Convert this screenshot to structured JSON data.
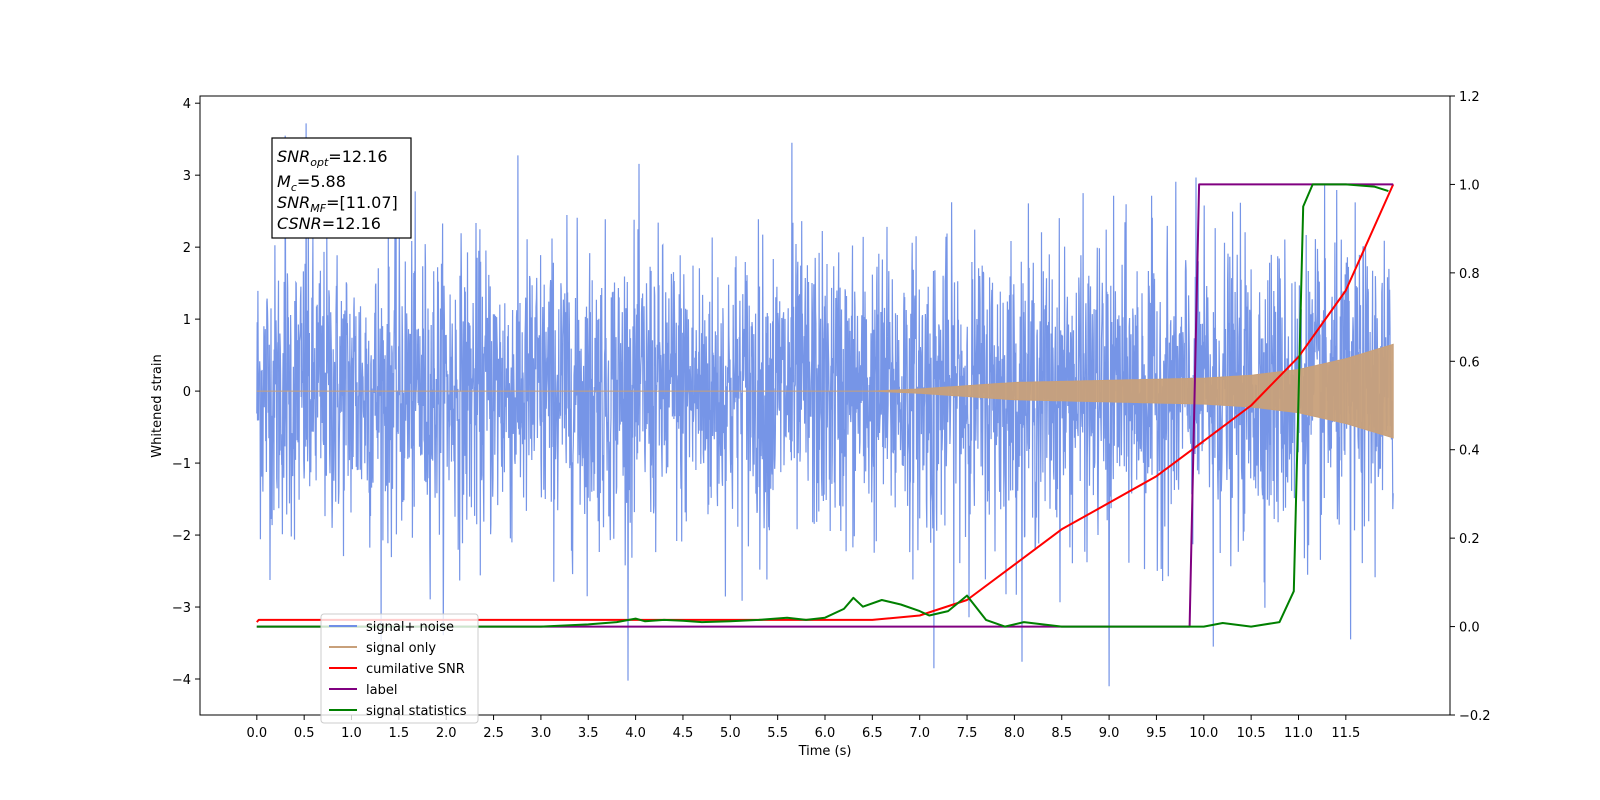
{
  "chart_data": {
    "type": "line",
    "xlabel": "Time (s)",
    "ylabel": "Whitened strain",
    "xlim": [
      -0.6,
      12.6
    ],
    "ylim": [
      -4.5,
      4.1
    ],
    "y2lim": [
      -0.2,
      1.2
    ],
    "x_ticks": [
      "0.0",
      "0.5",
      "1.0",
      "1.5",
      "2.0",
      "2.5",
      "3.0",
      "3.5",
      "4.0",
      "4.5",
      "5.0",
      "5.5",
      "6.0",
      "6.5",
      "7.0",
      "7.5",
      "8.0",
      "8.5",
      "9.0",
      "9.5",
      "10.0",
      "10.5",
      "11.0",
      "11.5"
    ],
    "y_ticks": [
      "4",
      "3",
      "2",
      "1",
      "0",
      "−1",
      "−2",
      "−3",
      "−4"
    ],
    "y2_ticks": [
      "1.2",
      "1.0",
      "0.8",
      "0.6",
      "0.4",
      "0.2",
      "0.0",
      "−0.2"
    ],
    "grid": false,
    "legend_position": "bottom-left",
    "annotation": {
      "snr_opt": {
        "main": "SNR",
        "sub": "opt",
        "value": "=12.16"
      },
      "mc": {
        "main": "M",
        "sub": "c",
        "value": "=5.88"
      },
      "snr_mf": {
        "main": "SNR",
        "sub": "MF",
        "value": "=[11.07]"
      },
      "csnr": {
        "main": "CSNR",
        "value": "=12.16"
      }
    },
    "series": [
      {
        "name": "signal+ noise",
        "axis": "left",
        "color": "#6f8fe6",
        "description_range": [
          0.0,
          12.0
        ],
        "noise_amplitude_range": [
          -4.1,
          3.75
        ],
        "spikes": [
          [
            0.52,
            3.72
          ],
          [
            5.65,
            3.45
          ],
          [
            9.0,
            -4.1
          ],
          [
            7.15,
            -3.85
          ],
          [
            0.3,
            3.55
          ],
          [
            10.1,
            -3.55
          ],
          [
            11.55,
            -3.45
          ]
        ]
      },
      {
        "name": "signal only",
        "axis": "left",
        "color": "#c8a07a",
        "envelope": [
          [
            0.0,
            0.0
          ],
          [
            6.5,
            0.0
          ],
          [
            7.0,
            0.03
          ],
          [
            8.0,
            0.12
          ],
          [
            9.0,
            0.15
          ],
          [
            10.0,
            0.18
          ],
          [
            10.5,
            0.22
          ],
          [
            11.0,
            0.3
          ],
          [
            11.5,
            0.45
          ],
          [
            12.0,
            0.65
          ]
        ]
      },
      {
        "name": "cumilative SNR",
        "axis": "right",
        "color": "#ff0000",
        "x": [
          0.0,
          0.02,
          6.5,
          7.0,
          7.5,
          8.0,
          8.5,
          9.0,
          9.5,
          10.0,
          10.5,
          11.0,
          11.5,
          12.0
        ],
        "y": [
          0.01,
          0.015,
          0.015,
          0.025,
          0.06,
          0.14,
          0.22,
          0.28,
          0.34,
          0.42,
          0.5,
          0.61,
          0.76,
          1.0
        ]
      },
      {
        "name": "label",
        "axis": "right",
        "color": "#800080",
        "x": [
          0.0,
          9.85,
          9.95,
          12.0
        ],
        "y": [
          0.0,
          0.0,
          1.0,
          1.0
        ]
      },
      {
        "name": "signal statistics",
        "axis": "right",
        "color": "#008000",
        "x": [
          0.0,
          3.0,
          3.5,
          3.8,
          4.0,
          4.1,
          4.3,
          4.5,
          4.7,
          5.0,
          5.3,
          5.6,
          5.8,
          6.0,
          6.2,
          6.3,
          6.4,
          6.6,
          6.8,
          7.0,
          7.1,
          7.3,
          7.5,
          7.7,
          7.9,
          8.1,
          8.3,
          8.5,
          9.0,
          9.5,
          10.0,
          10.2,
          10.5,
          10.8,
          10.95,
          11.05,
          11.15,
          11.3,
          11.5,
          11.8,
          11.95
        ],
        "y": [
          0.0,
          0.0,
          0.005,
          0.01,
          0.018,
          0.012,
          0.015,
          0.013,
          0.01,
          0.012,
          0.015,
          0.02,
          0.015,
          0.02,
          0.04,
          0.065,
          0.045,
          0.06,
          0.05,
          0.035,
          0.025,
          0.035,
          0.07,
          0.015,
          0.0,
          0.01,
          0.005,
          0.0,
          0.0,
          0.0,
          0.0,
          0.008,
          0.0,
          0.01,
          0.08,
          0.95,
          1.0,
          1.0,
          1.0,
          0.995,
          0.985
        ]
      }
    ]
  }
}
